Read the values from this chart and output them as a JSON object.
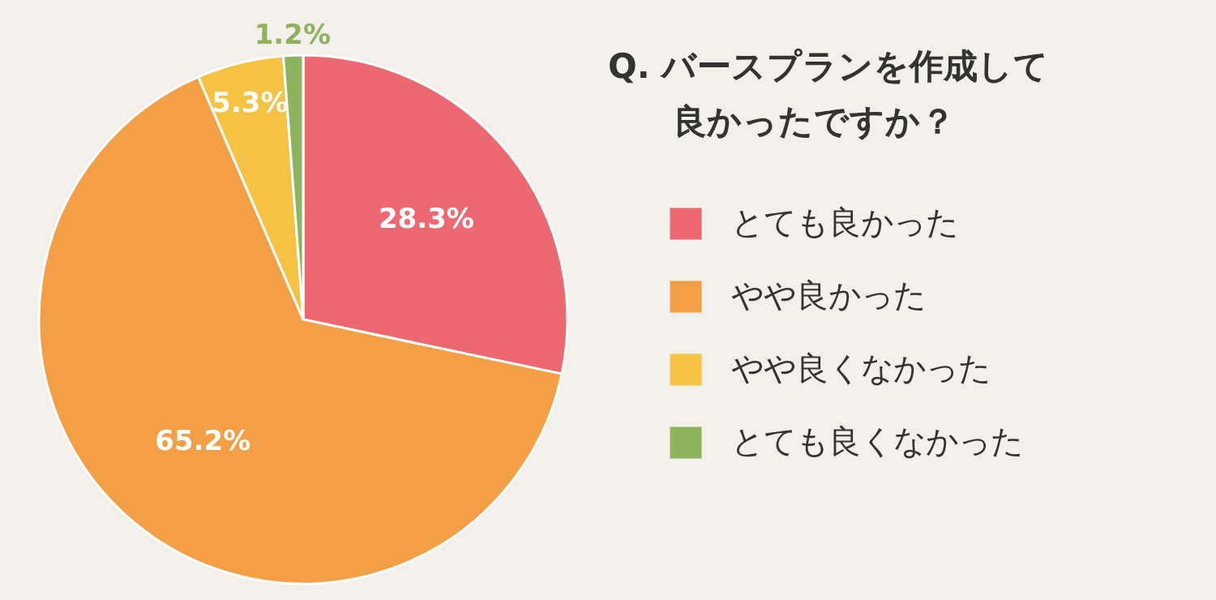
{
  "chart_data": {
    "type": "pie",
    "title": "Q. バースプランを作成して良かったですか？",
    "categories": [
      "とても良かった",
      "やや良かった",
      "やや良くなかった",
      "とても良くなかった"
    ],
    "values": [
      28.3,
      65.2,
      5.3,
      1.2
    ],
    "colors": [
      "#ec6972",
      "#f29f45",
      "#f6c243",
      "#8db35f"
    ],
    "value_labels": [
      "28.3%",
      "65.2%",
      "5.3%",
      "1.2%"
    ],
    "legend": "right"
  }
}
